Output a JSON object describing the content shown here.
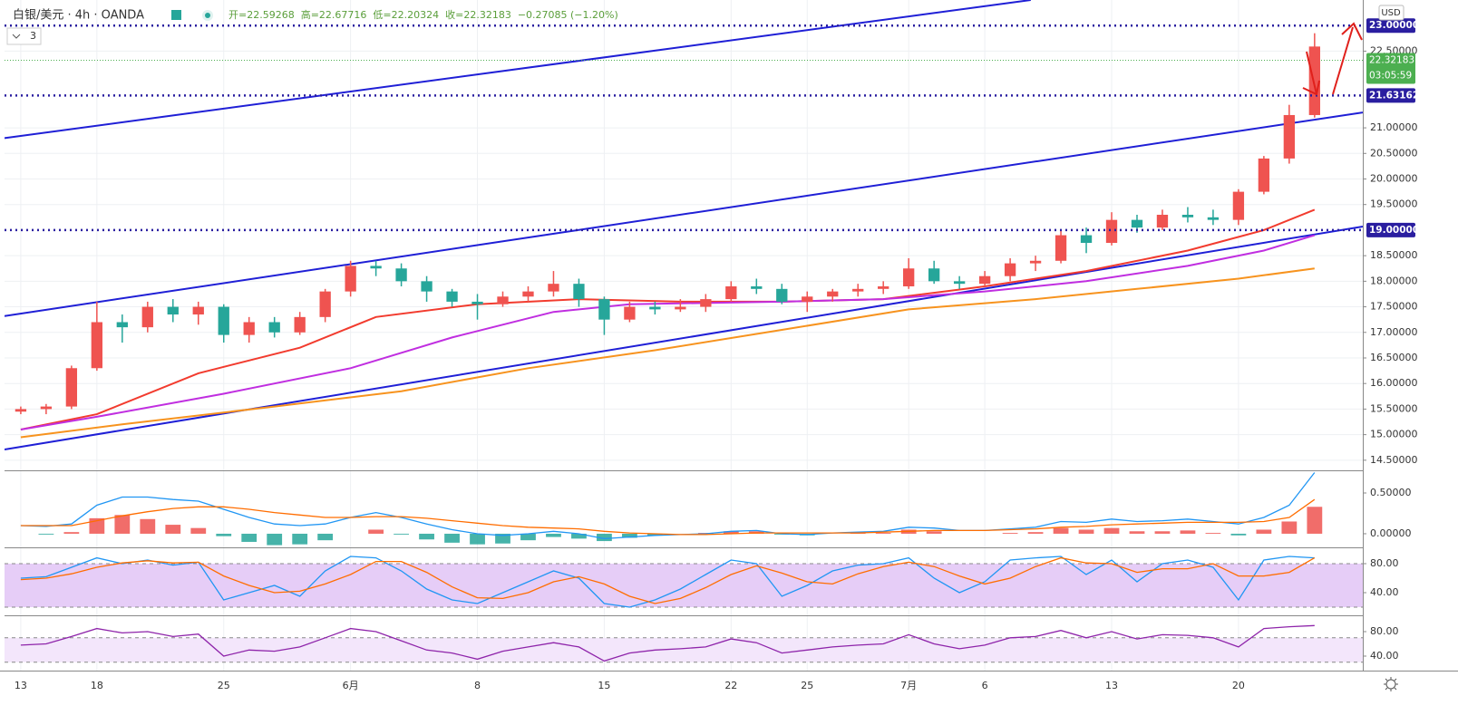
{
  "chart_data": {
    "type": "candlestick",
    "symbol": "白银/美元 · 4h · OANDA",
    "ohlc_header": [
      "开=22.59268",
      "高=22.67716",
      "低=22.20324",
      "收=22.32183",
      "−0.27085 (−1.20%)"
    ],
    "indicator_count": "3",
    "currency": "USD",
    "xlim": [
      -0.64,
      52.9
    ],
    "xticks": [
      {
        "value": 0,
        "label": "13"
      },
      {
        "value": 3,
        "label": "18"
      },
      {
        "value": 8,
        "label": "25"
      },
      {
        "value": 13,
        "label": "6月"
      },
      {
        "value": 18,
        "label": "8"
      },
      {
        "value": 23,
        "label": "15"
      },
      {
        "value": 28,
        "label": "22"
      },
      {
        "value": 31,
        "label": "25"
      },
      {
        "value": 35,
        "label": "7月"
      },
      {
        "value": 38,
        "label": "6"
      },
      {
        "value": 43,
        "label": "13"
      },
      {
        "value": 48,
        "label": "20"
      }
    ],
    "ylim": [
      14.32,
      23.5
    ],
    "yticks": [
      {
        "value": 14.5,
        "label": "14.50000"
      },
      {
        "value": 15,
        "label": "15.00000"
      },
      {
        "value": 15.5,
        "label": "15.50000"
      },
      {
        "value": 16,
        "label": "16.00000"
      },
      {
        "value": 16.5,
        "label": "16.50000"
      },
      {
        "value": 17,
        "label": "17.00000"
      },
      {
        "value": 17.5,
        "label": "17.50000"
      },
      {
        "value": 18,
        "label": "18.00000"
      },
      {
        "value": 18.5,
        "label": "18.50000"
      },
      {
        "value": 19.5,
        "label": "19.50000"
      },
      {
        "value": 20,
        "label": "20.00000"
      },
      {
        "value": 20.5,
        "label": "20.50000"
      },
      {
        "value": 21,
        "label": "21.00000"
      },
      {
        "value": 22.5,
        "label": "22.50000"
      }
    ],
    "grid": true,
    "candles": {
      "up_color": "#ef5350",
      "down_color": "#26a69a",
      "open": [
        15.45,
        15.5,
        15.55,
        16.3,
        17.2,
        17.1,
        17.5,
        17.35,
        17.5,
        16.95,
        17.2,
        17.0,
        17.3,
        17.8,
        18.3,
        18.25,
        18.0,
        17.8,
        17.6,
        17.55,
        17.7,
        17.8,
        17.95,
        17.65,
        17.25,
        17.5,
        17.45,
        17.5,
        17.65,
        17.9,
        17.85,
        17.6,
        17.7,
        17.8,
        17.85,
        17.9,
        18.25,
        18.0,
        17.95,
        18.1,
        18.35,
        18.4,
        18.9,
        18.75,
        19.2,
        19.05,
        19.3,
        19.25,
        19.2,
        19.75,
        20.4,
        21.25
      ],
      "high": [
        15.55,
        15.6,
        16.35,
        17.6,
        17.35,
        17.6,
        17.65,
        17.6,
        17.55,
        17.3,
        17.3,
        17.4,
        17.85,
        18.4,
        18.4,
        18.35,
        18.1,
        17.85,
        17.75,
        17.8,
        17.9,
        18.2,
        18.05,
        17.7,
        17.6,
        17.6,
        17.65,
        17.75,
        18.0,
        18.05,
        17.95,
        17.8,
        17.85,
        17.95,
        18.0,
        18.45,
        18.4,
        18.1,
        18.2,
        18.45,
        18.5,
        19.0,
        19.05,
        19.35,
        19.3,
        19.4,
        19.45,
        19.4,
        19.8,
        20.45,
        21.45,
        22.85
      ],
      "low": [
        15.4,
        15.4,
        15.5,
        16.25,
        16.8,
        17.0,
        17.2,
        17.15,
        16.8,
        16.8,
        16.9,
        16.95,
        17.2,
        17.7,
        18.1,
        17.9,
        17.6,
        17.5,
        17.25,
        17.5,
        17.6,
        17.7,
        17.5,
        16.95,
        17.2,
        17.35,
        17.4,
        17.4,
        17.6,
        17.75,
        17.55,
        17.4,
        17.6,
        17.7,
        17.75,
        17.85,
        17.95,
        17.85,
        17.9,
        18.0,
        18.2,
        18.35,
        18.55,
        18.7,
        18.95,
        19.0,
        19.15,
        19.1,
        19.1,
        19.7,
        20.3,
        21.2
      ],
      "close": [
        15.5,
        15.55,
        16.3,
        17.2,
        17.1,
        17.5,
        17.35,
        17.5,
        16.95,
        17.2,
        17.0,
        17.3,
        17.8,
        18.3,
        18.25,
        18.0,
        17.8,
        17.6,
        17.55,
        17.7,
        17.8,
        17.95,
        17.65,
        17.25,
        17.5,
        17.45,
        17.5,
        17.65,
        17.9,
        17.85,
        17.6,
        17.7,
        17.8,
        17.85,
        17.9,
        18.25,
        18.0,
        17.95,
        18.1,
        18.35,
        18.4,
        18.9,
        18.75,
        19.2,
        19.05,
        19.3,
        19.25,
        19.2,
        19.75,
        20.4,
        21.25,
        22.59
      ]
    },
    "moving_averages": [
      {
        "color": "#f23b2e",
        "x": [
          0,
          3,
          7,
          11,
          14,
          18,
          22,
          26,
          30,
          34,
          38,
          42,
          46,
          49,
          51
        ],
        "values": [
          15.1,
          15.4,
          16.2,
          16.7,
          17.3,
          17.55,
          17.65,
          17.6,
          17.6,
          17.65,
          17.9,
          18.2,
          18.6,
          19.0,
          19.4
        ]
      },
      {
        "color": "#c02ee0",
        "x": [
          0,
          3,
          8,
          13,
          17,
          21,
          24,
          30,
          34,
          38,
          42,
          46,
          49,
          51
        ],
        "values": [
          15.1,
          15.35,
          15.8,
          16.3,
          16.9,
          17.4,
          17.55,
          17.6,
          17.65,
          17.8,
          18.0,
          18.3,
          18.6,
          18.9
        ]
      },
      {
        "color": "#f7931e",
        "x": [
          0,
          4,
          10,
          15,
          20,
          25,
          30,
          35,
          40,
          44,
          48,
          51
        ],
        "values": [
          14.95,
          15.2,
          15.55,
          15.85,
          16.3,
          16.65,
          17.05,
          17.45,
          17.65,
          17.85,
          18.05,
          18.25
        ]
      }
    ],
    "trend_lines": [
      {
        "color": "#1f1fd6",
        "x": [
          -0.64,
          39.81
        ],
        "values": [
          20.8,
          23.5
        ]
      },
      {
        "color": "#1f1fd6",
        "x": [
          -0.64,
          52.9
        ],
        "values": [
          17.32,
          21.3
        ]
      },
      {
        "color": "#1f1fd6",
        "x": [
          -0.64,
          52.9
        ],
        "values": [
          14.71,
          19.07
        ]
      }
    ],
    "levels": {
      "color": "#2a1ea0",
      "items": [
        {
          "value": 23.0,
          "label": "23.00000"
        },
        {
          "value": 21.63162,
          "label": "21.63162"
        },
        {
          "value": 19.0,
          "label": "19.00000"
        }
      ]
    },
    "last_price": {
      "value": 22.32183,
      "label": "22.32183",
      "countdown": "03:05:59",
      "color": "#4caf50"
    },
    "macd": {
      "ylim": [
        -0.156,
        0.7556
      ],
      "yticks": [
        {
          "value": 0.5,
          "label": "0.50000"
        },
        {
          "value": 0,
          "label": "0.00000"
        }
      ],
      "series": [
        {
          "color": "#2196f3",
          "values": [
            0.1,
            0.09,
            0.12,
            0.35,
            0.45,
            0.45,
            0.42,
            0.4,
            0.3,
            0.2,
            0.12,
            0.1,
            0.12,
            0.2,
            0.26,
            0.2,
            0.12,
            0.05,
            0.0,
            -0.02,
            0.0,
            0.03,
            0.0,
            -0.06,
            -0.04,
            -0.02,
            -0.01,
            0.0,
            0.03,
            0.04,
            0.0,
            -0.01,
            0.01,
            0.02,
            0.03,
            0.08,
            0.07,
            0.04,
            0.04,
            0.06,
            0.08,
            0.15,
            0.14,
            0.18,
            0.15,
            0.16,
            0.18,
            0.15,
            0.12,
            0.2,
            0.35,
            0.75
          ]
        },
        {
          "color": "#ff6d00",
          "values": [
            0.1,
            0.1,
            0.1,
            0.16,
            0.22,
            0.27,
            0.31,
            0.33,
            0.33,
            0.3,
            0.26,
            0.23,
            0.2,
            0.2,
            0.21,
            0.21,
            0.19,
            0.16,
            0.13,
            0.1,
            0.08,
            0.07,
            0.06,
            0.03,
            0.01,
            0.0,
            -0.01,
            -0.01,
            0.0,
            0.01,
            0.01,
            0.01,
            0.01,
            0.01,
            0.02,
            0.03,
            0.04,
            0.04,
            0.04,
            0.05,
            0.06,
            0.08,
            0.09,
            0.11,
            0.12,
            0.13,
            0.14,
            0.14,
            0.14,
            0.15,
            0.2,
            0.42
          ]
        }
      ],
      "hist": {
        "up_color": "#ef5350",
        "down_color": "#26a69a",
        "values": [
          0,
          -0.01,
          0.02,
          0.19,
          0.23,
          0.18,
          0.11,
          0.07,
          -0.03,
          -0.1,
          -0.14,
          -0.13,
          -0.08,
          0.0,
          0.05,
          -0.01,
          -0.07,
          -0.11,
          -0.13,
          -0.12,
          -0.08,
          -0.04,
          -0.06,
          -0.09,
          -0.05,
          -0.02,
          0.0,
          0.01,
          0.03,
          0.03,
          -0.01,
          -0.02,
          0.0,
          0.01,
          0.01,
          0.05,
          0.03,
          0.0,
          0.0,
          0.01,
          0.02,
          0.07,
          0.05,
          0.07,
          0.03,
          0.03,
          0.04,
          0.01,
          -0.02,
          0.05,
          0.15,
          0.33
        ]
      }
    },
    "stoch": {
      "ylim": [
        10,
        101.25
      ],
      "yticks": [
        {
          "value": 80,
          "label": "80.00"
        },
        {
          "value": 40,
          "label": "40.00"
        }
      ],
      "band": [
        20,
        80
      ],
      "band_color": "#e6cdf7",
      "series": [
        {
          "color": "#2196f3",
          "values": [
            60,
            62,
            75,
            88,
            80,
            85,
            78,
            82,
            30,
            40,
            50,
            35,
            70,
            90,
            88,
            70,
            45,
            30,
            25,
            40,
            55,
            70,
            60,
            25,
            20,
            30,
            45,
            65,
            85,
            80,
            35,
            50,
            70,
            78,
            80,
            88,
            60,
            40,
            55,
            85,
            88,
            90,
            65,
            85,
            55,
            80,
            85,
            75,
            30,
            85,
            90,
            88
          ]
        },
        {
          "color": "#ff6d00",
          "values": [
            58,
            60,
            66,
            75,
            81,
            84,
            81,
            82,
            63,
            50,
            40,
            42,
            52,
            65,
            83,
            83,
            68,
            48,
            33,
            32,
            40,
            55,
            62,
            52,
            35,
            25,
            32,
            47,
            65,
            77,
            67,
            55,
            52,
            66,
            76,
            82,
            76,
            63,
            52,
            60,
            76,
            88,
            81,
            80,
            68,
            73,
            73,
            80,
            63,
            63,
            68,
            88
          ]
        }
      ]
    },
    "rsi": {
      "ylim": [
        16.3,
        105.2
      ],
      "yticks": [
        {
          "value": 80,
          "label": "80.00"
        },
        {
          "value": 40,
          "label": "40.00"
        }
      ],
      "band": [
        30,
        70
      ],
      "band_color": "#f3e6fb",
      "series": [
        {
          "color": "#8e24aa",
          "values": [
            58,
            60,
            72,
            85,
            78,
            80,
            72,
            76,
            40,
            50,
            48,
            55,
            70,
            85,
            80,
            65,
            50,
            45,
            35,
            48,
            55,
            62,
            55,
            32,
            45,
            50,
            52,
            55,
            68,
            62,
            45,
            50,
            55,
            58,
            60,
            75,
            60,
            52,
            58,
            70,
            72,
            82,
            70,
            80,
            68,
            75,
            74,
            70,
            55,
            85,
            88,
            90
          ]
        }
      ]
    }
  }
}
